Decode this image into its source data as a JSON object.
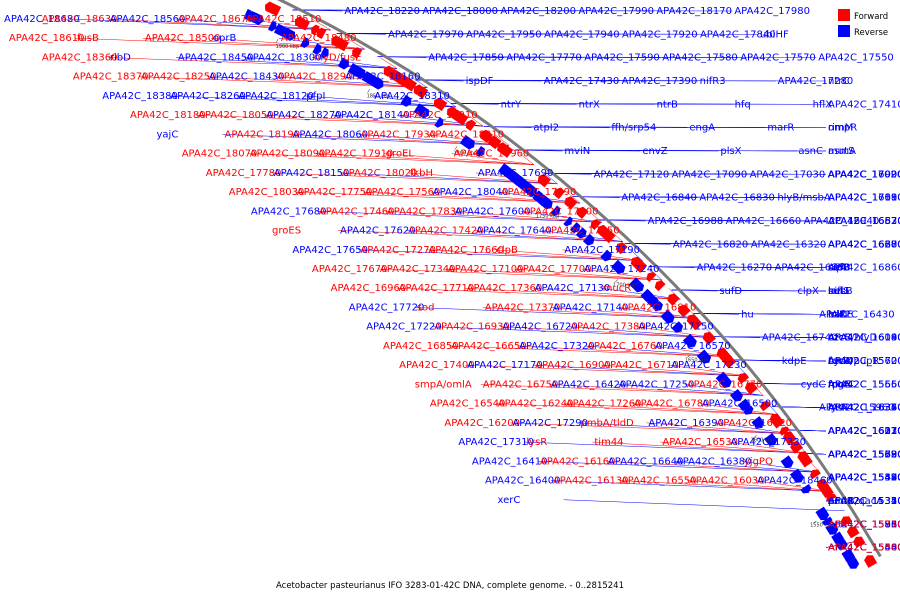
{
  "caption": "Acetobacter pasteurianus IFO 3283-01-42C DNA, complete genome. - 0..2815241",
  "legend": {
    "forward_label": "Forward",
    "reverse_label": "Reverse",
    "forward_color": "#ff0000",
    "reverse_color": "#0000ff"
  },
  "colors": {
    "forward": "#ff0000",
    "reverse": "#0000ff",
    "backbone": "#7a7a7a"
  },
  "ticks": [
    "1900 kbp",
    "1850 kbp",
    "1800 kbp",
    "1750 kbp",
    "1700 kbp",
    "1650 kbp",
    "1600 kbp",
    "1550 kbp"
  ],
  "labels": [
    {
      "t": "APA42C_18680",
      "s": "r"
    },
    {
      "t": "APA42C_18630",
      "s": "f"
    },
    {
      "t": "APA42C_18560",
      "s": "r"
    },
    {
      "t": "APA42C_18670",
      "s": "f"
    },
    {
      "t": "APA42C_18510",
      "s": "f"
    },
    {
      "t": "APA42C_18610",
      "s": "f"
    },
    {
      "t": "fusB",
      "s": "f"
    },
    {
      "t": "APA42C_18500",
      "s": "f"
    },
    {
      "t": "oprB",
      "s": "r"
    },
    {
      "t": "APA42C_18480",
      "s": "f"
    },
    {
      "t": "APA42C_18360",
      "s": "f"
    },
    {
      "t": "ribD",
      "s": "r"
    },
    {
      "t": "APA42C_18450",
      "s": "r"
    },
    {
      "t": "APA42C_18300",
      "s": "r"
    },
    {
      "t": "hlyD/fusE",
      "s": "f"
    },
    {
      "t": "APA42C_18370",
      "s": "f"
    },
    {
      "t": "APA42C_18250",
      "s": "f"
    },
    {
      "t": "APA42C_18430",
      "s": "r"
    },
    {
      "t": "APA42C_18290",
      "s": "f"
    },
    {
      "t": "APA42C_18160",
      "s": "r"
    },
    {
      "t": "APA42C_18380",
      "s": "r"
    },
    {
      "t": "APA42C_18260",
      "s": "r"
    },
    {
      "t": "APA42C_18120",
      "s": "r"
    },
    {
      "t": "pfpI",
      "s": "r"
    },
    {
      "t": "APA42C_18310",
      "s": "r"
    },
    {
      "t": "APA42C_18180",
      "s": "f"
    },
    {
      "t": "APA42C_18050",
      "s": "f"
    },
    {
      "t": "APA42C_18270",
      "s": "r"
    },
    {
      "t": "APA42C_18140",
      "s": "r"
    },
    {
      "t": "APA42C_18010",
      "s": "f"
    },
    {
      "t": "yajC",
      "s": "r"
    },
    {
      "t": "APA42C_18190",
      "s": "f"
    },
    {
      "t": "APA42C_18060",
      "s": "r"
    },
    {
      "t": "APA42C_17930",
      "s": "f"
    },
    {
      "t": "APA42C_18210",
      "s": "f"
    },
    {
      "t": "APA42C_18070",
      "s": "f"
    },
    {
      "t": "APA42C_18090",
      "s": "f"
    },
    {
      "t": "APA42C_17910",
      "s": "f"
    },
    {
      "t": "groEL",
      "s": "f"
    },
    {
      "t": "APA42C_17960",
      "s": "f"
    },
    {
      "t": "APA42C_17780",
      "s": "f"
    },
    {
      "t": "APA42C_18150",
      "s": "r"
    },
    {
      "t": "APA42C_18020",
      "s": "f"
    },
    {
      "t": "fkbH",
      "s": "f"
    },
    {
      "t": "APA42C_17690",
      "s": "r"
    },
    {
      "t": "APA42C_18030",
      "s": "f"
    },
    {
      "t": "APA42C_17750",
      "s": "f"
    },
    {
      "t": "APA42C_17560",
      "s": "f"
    },
    {
      "t": "APA42C_18040",
      "s": "r"
    },
    {
      "t": "APA42C_17890",
      "s": "f"
    },
    {
      "t": "APA42C_17680",
      "s": "r"
    },
    {
      "t": "APA42C_17460",
      "s": "f"
    },
    {
      "t": "APA42C_17830",
      "s": "f"
    },
    {
      "t": "APA42C_17600",
      "s": "r"
    },
    {
      "t": "APA42C_17900",
      "s": "f"
    },
    {
      "t": "groES",
      "s": "f"
    },
    {
      "t": "APA42C_17620",
      "s": "r"
    },
    {
      "t": "APA42C_17420",
      "s": "f"
    },
    {
      "t": "APA42C_17640",
      "s": "r"
    },
    {
      "t": "APA42C_17350",
      "s": "f"
    },
    {
      "t": "APA42C_17650",
      "s": "r"
    },
    {
      "t": "APA42C_17270",
      "s": "f"
    },
    {
      "t": "APA42C_17660",
      "s": "f"
    },
    {
      "t": "clpB",
      "s": "f"
    },
    {
      "t": "APA42C_17190",
      "s": "r"
    },
    {
      "t": "APA42C_17670",
      "s": "f"
    },
    {
      "t": "APA42C_17340",
      "s": "f"
    },
    {
      "t": "APA42C_17100",
      "s": "f"
    },
    {
      "t": "APA42C_17700",
      "s": "f"
    },
    {
      "t": "APA42C_17240",
      "s": "r"
    },
    {
      "t": "APA42C_16960",
      "s": "f"
    },
    {
      "t": "APA42C_17710",
      "s": "f"
    },
    {
      "t": "APA42C_17360",
      "s": "f"
    },
    {
      "t": "APA42C_17130",
      "s": "r"
    },
    {
      "t": "mucR",
      "s": "f"
    },
    {
      "t": "APA42C_17720",
      "s": "r"
    },
    {
      "t": "sod",
      "s": "f"
    },
    {
      "t": "APA42C_17370",
      "s": "f"
    },
    {
      "t": "APA42C_17140",
      "s": "r"
    },
    {
      "t": "APA42C_16810",
      "s": "f"
    },
    {
      "t": "APA42C_17220",
      "s": "r"
    },
    {
      "t": "APA42C_16930",
      "s": "f"
    },
    {
      "t": "APA42C_16720",
      "s": "r"
    },
    {
      "t": "APA42C_17380",
      "s": "f"
    },
    {
      "t": "APA42C_17150",
      "s": "r"
    },
    {
      "t": "APA42C_16850",
      "s": "f"
    },
    {
      "t": "APA42C_16650",
      "s": "f"
    },
    {
      "t": "APA42C_17320",
      "s": "r"
    },
    {
      "t": "APA42C_16760",
      "s": "f"
    },
    {
      "t": "APA42C_16570",
      "s": "r"
    },
    {
      "t": "APA42C_17400",
      "s": "f"
    },
    {
      "t": "APA42C_17170",
      "s": "r"
    },
    {
      "t": "APA42C_16900",
      "s": "f"
    },
    {
      "t": "APA42C_16710",
      "s": "f"
    },
    {
      "t": "APA42C_17230",
      "s": "r"
    },
    {
      "t": "smpA/omlA",
      "s": "f"
    },
    {
      "t": "APA42C_16750",
      "s": "f"
    },
    {
      "t": "APA42C_16420",
      "s": "r"
    },
    {
      "t": "APA42C_17250",
      "s": "r"
    },
    {
      "t": "APA42C_16770",
      "s": "f"
    },
    {
      "t": "APA42C_16540",
      "s": "f"
    },
    {
      "t": "APA42C_16240",
      "s": "f"
    },
    {
      "t": "APA42C_17260",
      "s": "f"
    },
    {
      "t": "APA42C_16780",
      "s": "f"
    },
    {
      "t": "APA42C_16500",
      "s": "r"
    },
    {
      "t": "APA42C_16200",
      "s": "f"
    },
    {
      "t": "APA42C_17290",
      "s": "r"
    },
    {
      "t": "pmbA/tldD",
      "s": "f"
    },
    {
      "t": "APA42C_16390",
      "s": "r"
    },
    {
      "t": "APA42C_16120",
      "s": "f"
    },
    {
      "t": "APA42C_17310",
      "s": "r"
    },
    {
      "t": "lysR",
      "s": "f"
    },
    {
      "t": "tim44",
      "s": "f"
    },
    {
      "t": "APA42C_16530",
      "s": "f"
    },
    {
      "t": "APA42C_17330",
      "s": "r"
    },
    {
      "t": "APA42C_16410",
      "s": "r"
    },
    {
      "t": "APA42C_16160",
      "s": "f"
    },
    {
      "t": "APA42C_16640",
      "s": "r"
    },
    {
      "t": "APA42C_16380",
      "s": "r"
    },
    {
      "t": "yjgPQ",
      "s": "f"
    },
    {
      "t": "APA42C_16400",
      "s": "r"
    },
    {
      "t": "APA42C_16130",
      "s": "f"
    },
    {
      "t": "APA42C_16550",
      "s": "f"
    },
    {
      "t": "APA42C_16030",
      "s": "f"
    },
    {
      "t": "APA42C_18460",
      "s": "r"
    },
    {
      "t": "xerC",
      "s": "r"
    },
    {
      "t": "APA42C_18220",
      "s": "r"
    },
    {
      "t": "APA42C_18000",
      "s": "r"
    },
    {
      "t": "APA42C_18200",
      "s": "r"
    },
    {
      "t": "APA42C_17990",
      "s": "r"
    },
    {
      "t": "APA42C_18170",
      "s": "r"
    },
    {
      "t": "APA42C_17980",
      "s": "r"
    },
    {
      "t": "APA42C_17970",
      "s": "r"
    },
    {
      "t": "APA42C_17950",
      "s": "r"
    },
    {
      "t": "APA42C_17940",
      "s": "r"
    },
    {
      "t": "APA42C_17920",
      "s": "r"
    },
    {
      "t": "APA42C_17840",
      "s": "r"
    },
    {
      "t": "ubiHF",
      "s": "r"
    },
    {
      "t": "APA42C_17850",
      "s": "r"
    },
    {
      "t": "APA42C_17770",
      "s": "r"
    },
    {
      "t": "APA42C_17590",
      "s": "r"
    },
    {
      "t": "APA42C_17580",
      "s": "r"
    },
    {
      "t": "APA42C_17570",
      "s": "r"
    },
    {
      "t": "APA42C_17550",
      "s": "r"
    },
    {
      "t": "ispDF",
      "s": "r"
    },
    {
      "t": "APA42C_17430",
      "s": "r"
    },
    {
      "t": "APA42C_17390",
      "s": "r"
    },
    {
      "t": "nifR3",
      "s": "r"
    },
    {
      "t": "APA42C_17280",
      "s": "r"
    },
    {
      "t": "ntrC",
      "s": "r"
    },
    {
      "t": "ntrY",
      "s": "r"
    },
    {
      "t": "ntrX",
      "s": "r"
    },
    {
      "t": "ntrB",
      "s": "r"
    },
    {
      "t": "hfq",
      "s": "r"
    },
    {
      "t": "hflX",
      "s": "r"
    },
    {
      "t": "APA42C_17410",
      "s": "r"
    },
    {
      "t": "atpI2",
      "s": "r"
    },
    {
      "t": "ffh/srp54",
      "s": "r"
    },
    {
      "t": "engA",
      "s": "r"
    },
    {
      "t": "marR",
      "s": "r"
    },
    {
      "t": "ompR",
      "s": "r"
    },
    {
      "t": "rimM",
      "s": "r"
    },
    {
      "t": "mviN",
      "s": "r"
    },
    {
      "t": "envZ",
      "s": "r"
    },
    {
      "t": "plsX",
      "s": "r"
    },
    {
      "t": "asnC",
      "s": "r"
    },
    {
      "t": "mutS",
      "s": "r"
    },
    {
      "t": "asmA",
      "s": "r"
    },
    {
      "t": "APA42C_17120",
      "s": "r"
    },
    {
      "t": "APA42C_17090",
      "s": "r"
    },
    {
      "t": "APA42C_17030",
      "s": "r"
    },
    {
      "t": "APA42C_17020",
      "s": "r"
    },
    {
      "t": "APA42C_17000",
      "s": "r"
    },
    {
      "t": "APA42C_16990",
      "s": "r"
    },
    {
      "t": "APA42C_16840",
      "s": "r"
    },
    {
      "t": "APA42C_16830",
      "s": "r"
    },
    {
      "t": "hlyB/msbA",
      "s": "r"
    },
    {
      "t": "APA42C_17110",
      "s": "r"
    },
    {
      "t": "APA42C_17080",
      "s": "r"
    },
    {
      "t": "APA42C_16690",
      "s": "r"
    },
    {
      "t": "APA42C_16988",
      "s": "r"
    },
    {
      "t": "APA42C_16660",
      "s": "r"
    },
    {
      "t": "APA42C_16940",
      "s": "r"
    },
    {
      "t": "APA42C_16630",
      "s": "r"
    },
    {
      "t": "APA42C_16870",
      "s": "r"
    },
    {
      "t": "APA42C_16520",
      "s": "r"
    },
    {
      "t": "APA42C_16820",
      "s": "r"
    },
    {
      "t": "APA42C_16320",
      "s": "r"
    },
    {
      "t": "APA42C_16680",
      "s": "r"
    },
    {
      "t": "APA42C_16670",
      "s": "r"
    },
    {
      "t": "APA42C_16300",
      "s": "r"
    },
    {
      "t": "APA42C_16280",
      "s": "r"
    },
    {
      "t": "APA42C_16270",
      "s": "r"
    },
    {
      "t": "APA42C_16880",
      "s": "r"
    },
    {
      "t": "APA42C_16860",
      "s": "r"
    },
    {
      "t": "sufB",
      "s": "r"
    },
    {
      "t": "sufC",
      "s": "r"
    },
    {
      "t": "clpP",
      "s": "r"
    },
    {
      "t": "sufD",
      "s": "r"
    },
    {
      "t": "clpX",
      "s": "r"
    },
    {
      "t": "sufS",
      "s": "r"
    },
    {
      "t": "nifU",
      "s": "r"
    },
    {
      "t": "hesB",
      "s": "r"
    },
    {
      "t": "lon",
      "s": "r"
    },
    {
      "t": "hu",
      "s": "r"
    },
    {
      "t": "APA42C_16430",
      "s": "r"
    },
    {
      "t": "lolCE",
      "s": "r"
    },
    {
      "t": "lolD",
      "s": "r"
    },
    {
      "t": "iclR",
      "s": "r"
    },
    {
      "t": "baf",
      "s": "r"
    },
    {
      "t": "APA42C_16740",
      "s": "r"
    },
    {
      "t": "APA42C_16190",
      "s": "r"
    },
    {
      "t": "APA42C_16140",
      "s": "r"
    },
    {
      "t": "APA42C_16080",
      "s": "r"
    },
    {
      "t": "czcC",
      "s": "r"
    },
    {
      "t": "czcB/hlyD",
      "s": "r"
    },
    {
      "t": "kdpE",
      "s": "r"
    },
    {
      "t": "fecR/pupR",
      "s": "r"
    },
    {
      "t": "czcA",
      "s": "r"
    },
    {
      "t": "APA42C_15620",
      "s": "r"
    },
    {
      "t": "cydD",
      "s": "r"
    },
    {
      "t": "APA42C_15700",
      "s": "r"
    },
    {
      "t": "cydC",
      "s": "r"
    },
    {
      "t": "rpoE",
      "s": "r"
    },
    {
      "t": "mgtC",
      "s": "r"
    },
    {
      "t": "APA42C_15650",
      "s": "r"
    },
    {
      "t": "APA42C_15560",
      "s": "r"
    },
    {
      "t": "fcuA",
      "s": "r"
    },
    {
      "t": "APA42C_15960",
      "s": "r"
    },
    {
      "t": "lysR",
      "s": "r"
    },
    {
      "t": "APA42C_16370",
      "s": "r"
    },
    {
      "t": "APA42C_16360",
      "s": "r"
    },
    {
      "t": "APA42C_16350",
      "s": "r"
    },
    {
      "t": "APA42C_16340",
      "s": "r"
    },
    {
      "t": "APA42C_16330",
      "s": "r"
    },
    {
      "t": "APA42C_16310",
      "s": "r"
    },
    {
      "t": "APA42C_16220",
      "s": "r"
    },
    {
      "t": "APA42C_16210",
      "s": "r"
    },
    {
      "t": "APA42C_16170",
      "s": "r"
    },
    {
      "t": "APA42C_16070",
      "s": "r"
    },
    {
      "t": "APA42C_15890",
      "s": "r"
    },
    {
      "t": "APA42C_15720",
      "s": "r"
    },
    {
      "t": "APA42C_15690",
      "s": "r"
    },
    {
      "t": "APA42C_15680",
      "s": "r"
    },
    {
      "t": "APA42C_15590",
      "s": "r"
    },
    {
      "t": "APA42C_15530",
      "s": "r"
    },
    {
      "t": "APA42C_15520",
      "s": "r"
    },
    {
      "t": "APA42C_15490",
      "s": "r"
    },
    {
      "t": "APA42C_15470",
      "s": "r"
    },
    {
      "t": "APA42C_15440",
      "s": "r"
    },
    {
      "t": "APA42C_15430",
      "s": "r"
    },
    {
      "t": "APA42C_15380",
      "s": "r"
    },
    {
      "t": "APA42C_15350",
      "s": "r"
    },
    {
      "t": "APA42C_15340",
      "s": "r"
    },
    {
      "t": "APA42C_15320",
      "s": "r"
    },
    {
      "t": "APA42C_15310",
      "s": "r"
    },
    {
      "t": "emrB/qacA",
      "s": "r"
    },
    {
      "t": "padR",
      "s": "r"
    },
    {
      "t": "npd",
      "s": "r"
    },
    {
      "t": "APA42C_15910",
      "s": "r"
    },
    {
      "t": "APA42C_15850",
      "s": "r"
    },
    {
      "t": "APA42C_15860",
      "s": "r"
    },
    {
      "t": "APA42C_15730",
      "s": "r"
    },
    {
      "t": "APA42C_15710",
      "s": "f"
    },
    {
      "t": "APA42C_15600",
      "s": "f"
    },
    {
      "t": "APA42C_15480",
      "s": "r"
    },
    {
      "t": "APA42C_15540",
      "s": "r"
    },
    {
      "t": "APA42C_15300",
      "s": "f"
    }
  ]
}
